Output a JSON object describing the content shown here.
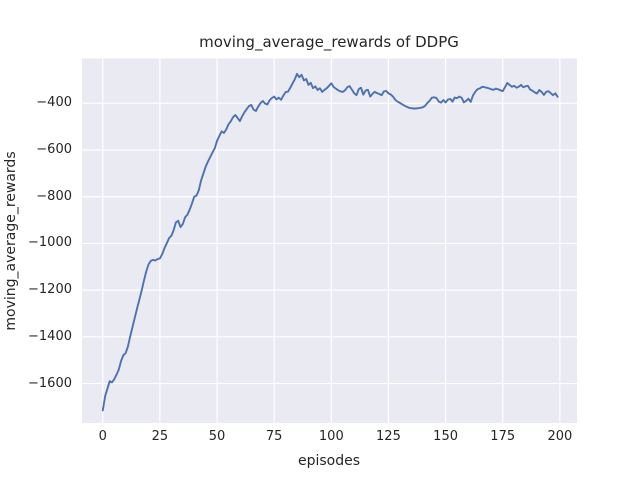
{
  "figure": {
    "title": "moving_average_rewards of DDPG",
    "xlabel": "episodes",
    "ylabel": "moving_average_rewards"
  },
  "chart_data": {
    "type": "line",
    "title": "moving_average_rewards of DDPG",
    "xlabel": "episodes",
    "ylabel": "moving_average_rewards",
    "x_ticks": [
      0,
      25,
      50,
      75,
      100,
      125,
      150,
      175,
      200
    ],
    "y_ticks": [
      -400,
      -600,
      -800,
      -1000,
      -1200,
      -1400,
      -1600
    ],
    "xlim": [
      -9.1,
      207.5
    ],
    "ylim": [
      -1769,
      -208
    ],
    "grid": true,
    "legend_visible": false,
    "style": "seaborn-darkgrid",
    "colors": {
      "line": "#4c72b0",
      "axes_background": "#eaeaf2",
      "grid": "#ffffff",
      "figure_background": "#ffffff",
      "text": "#262626"
    },
    "series": [
      {
        "name": "moving_average_rewards",
        "x_start": 0,
        "x_step": 1,
        "values": [
          -1715,
          -1655,
          -1622,
          -1590,
          -1595,
          -1582,
          -1562,
          -1540,
          -1503,
          -1478,
          -1470,
          -1442,
          -1398,
          -1358,
          -1318,
          -1278,
          -1240,
          -1203,
          -1160,
          -1120,
          -1090,
          -1075,
          -1070,
          -1073,
          -1067,
          -1064,
          -1046,
          -1020,
          -999,
          -977,
          -967,
          -944,
          -910,
          -903,
          -930,
          -917,
          -888,
          -877,
          -856,
          -830,
          -800,
          -795,
          -772,
          -730,
          -700,
          -672,
          -650,
          -630,
          -610,
          -592,
          -560,
          -540,
          -520,
          -527,
          -512,
          -490,
          -477,
          -459,
          -450,
          -463,
          -476,
          -455,
          -438,
          -424,
          -411,
          -407,
          -427,
          -433,
          -414,
          -399,
          -390,
          -401,
          -405,
          -387,
          -377,
          -371,
          -383,
          -376,
          -385,
          -367,
          -352,
          -350,
          -334,
          -315,
          -297,
          -274,
          -288,
          -278,
          -302,
          -296,
          -321,
          -312,
          -335,
          -327,
          -343,
          -335,
          -351,
          -342,
          -335,
          -325,
          -314,
          -330,
          -337,
          -344,
          -349,
          -351,
          -344,
          -331,
          -326,
          -341,
          -357,
          -365,
          -339,
          -333,
          -363,
          -345,
          -342,
          -371,
          -359,
          -351,
          -356,
          -360,
          -365,
          -349,
          -347,
          -357,
          -362,
          -371,
          -385,
          -393,
          -398,
          -404,
          -410,
          -415,
          -419,
          -421,
          -422,
          -422,
          -421,
          -419,
          -417,
          -411,
          -399,
          -389,
          -376,
          -374,
          -377,
          -392,
          -397,
          -386,
          -396,
          -384,
          -381,
          -393,
          -375,
          -378,
          -371,
          -376,
          -396,
          -389,
          -380,
          -394,
          -366,
          -350,
          -339,
          -336,
          -329,
          -331,
          -333,
          -336,
          -340,
          -342,
          -337,
          -340,
          -344,
          -348,
          -331,
          -313,
          -321,
          -329,
          -325,
          -333,
          -329,
          -321,
          -331,
          -327,
          -325,
          -341,
          -346,
          -353,
          -358,
          -343,
          -351,
          -364,
          -351,
          -348,
          -356,
          -365,
          -357,
          -372
        ]
      }
    ]
  }
}
